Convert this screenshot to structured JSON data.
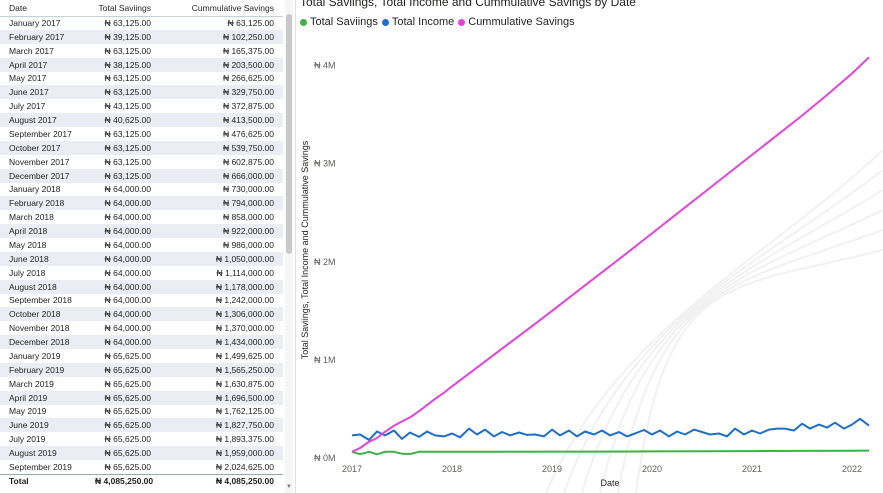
{
  "table": {
    "columns": [
      "Date",
      "Total Saviings",
      "Cummulative Savings"
    ],
    "rows": [
      [
        "January 2017",
        "₦ 63,125.00",
        "₦ 63,125.00"
      ],
      [
        "February 2017",
        "₦ 39,125.00",
        "₦ 102,250.00"
      ],
      [
        "March 2017",
        "₦ 63,125.00",
        "₦ 165,375.00"
      ],
      [
        "April 2017",
        "₦ 38,125.00",
        "₦ 203,500.00"
      ],
      [
        "May 2017",
        "₦ 63,125.00",
        "₦ 266,625.00"
      ],
      [
        "June 2017",
        "₦ 63,125.00",
        "₦ 329,750.00"
      ],
      [
        "July 2017",
        "₦ 43,125.00",
        "₦ 372,875.00"
      ],
      [
        "August 2017",
        "₦ 40,625.00",
        "₦ 413,500.00"
      ],
      [
        "September 2017",
        "₦ 63,125.00",
        "₦ 476,625.00"
      ],
      [
        "October 2017",
        "₦ 63,125.00",
        "₦ 539,750.00"
      ],
      [
        "November 2017",
        "₦ 63,125.00",
        "₦ 602,875.00"
      ],
      [
        "December 2017",
        "₦ 63,125.00",
        "₦ 666,000.00"
      ],
      [
        "January 2018",
        "₦ 64,000.00",
        "₦ 730,000.00"
      ],
      [
        "February 2018",
        "₦ 64,000.00",
        "₦ 794,000.00"
      ],
      [
        "March 2018",
        "₦ 64,000.00",
        "₦ 858,000.00"
      ],
      [
        "April 2018",
        "₦ 64,000.00",
        "₦ 922,000.00"
      ],
      [
        "May 2018",
        "₦ 64,000.00",
        "₦ 986,000.00"
      ],
      [
        "June 2018",
        "₦ 64,000.00",
        "₦ 1,050,000.00"
      ],
      [
        "July 2018",
        "₦ 64,000.00",
        "₦ 1,114,000.00"
      ],
      [
        "August 2018",
        "₦ 64,000.00",
        "₦ 1,178,000.00"
      ],
      [
        "September 2018",
        "₦ 64,000.00",
        "₦ 1,242,000.00"
      ],
      [
        "October 2018",
        "₦ 64,000.00",
        "₦ 1,306,000.00"
      ],
      [
        "November 2018",
        "₦ 64,000.00",
        "₦ 1,370,000.00"
      ],
      [
        "December 2018",
        "₦ 64,000.00",
        "₦ 1,434,000.00"
      ],
      [
        "January 2019",
        "₦ 65,625.00",
        "₦ 1,499,625.00"
      ],
      [
        "February 2019",
        "₦ 65,625.00",
        "₦ 1,565,250.00"
      ],
      [
        "March 2019",
        "₦ 65,625.00",
        "₦ 1,630,875.00"
      ],
      [
        "April 2019",
        "₦ 65,625.00",
        "₦ 1,696,500.00"
      ],
      [
        "May 2019",
        "₦ 65,625.00",
        "₦ 1,762,125.00"
      ],
      [
        "June 2019",
        "₦ 65,625.00",
        "₦ 1,827,750.00"
      ],
      [
        "July 2019",
        "₦ 65,625.00",
        "₦ 1,893,375.00"
      ],
      [
        "August 2019",
        "₦ 65,625.00",
        "₦ 1,959,000.00"
      ],
      [
        "September 2019",
        "₦ 65,625.00",
        "₦ 2,024,625.00"
      ]
    ],
    "total": [
      "Total",
      "₦ 4,085,250.00",
      "₦ 4,085,250.00"
    ]
  },
  "chart_data": {
    "type": "line",
    "title": "Total Saviings, Total Income and Cummulative Savings by Date",
    "xlabel": "Date",
    "ylabel": "Total Saviings, Total Income and Cummulative Savings",
    "ylim": [
      0,
      4200000
    ],
    "xlim": [
      2017.0,
      2022.18
    ],
    "y_ticks": [
      {
        "value": 0,
        "label": "₦ 0M"
      },
      {
        "value": 1000000,
        "label": "₦ 1M"
      },
      {
        "value": 2000000,
        "label": "₦ 2M"
      },
      {
        "value": 3000000,
        "label": "₦ 3M"
      },
      {
        "value": 4000000,
        "label": "₦ 4M"
      }
    ],
    "x_ticks": [
      {
        "value": 2017,
        "label": "2017"
      },
      {
        "value": 2018,
        "label": "2018"
      },
      {
        "value": 2019,
        "label": "2019"
      },
      {
        "value": 2020,
        "label": "2020"
      },
      {
        "value": 2021,
        "label": "2021"
      },
      {
        "value": 2022,
        "label": "2022"
      }
    ],
    "legend_position": "top-left",
    "series": [
      {
        "name": "Total Saviings",
        "color": "#3fb04a",
        "points": [
          [
            2017.0,
            63125
          ],
          [
            2017.08,
            39125
          ],
          [
            2017.17,
            63125
          ],
          [
            2017.25,
            38125
          ],
          [
            2017.33,
            63125
          ],
          [
            2017.42,
            63125
          ],
          [
            2017.5,
            43125
          ],
          [
            2017.58,
            40625
          ],
          [
            2017.67,
            63125
          ],
          [
            2017.75,
            63125
          ],
          [
            2017.83,
            63125
          ],
          [
            2017.92,
            63125
          ],
          [
            2018.0,
            64000
          ],
          [
            2018.5,
            64000
          ],
          [
            2019.0,
            65625
          ],
          [
            2019.5,
            65625
          ],
          [
            2020.0,
            67000
          ],
          [
            2020.5,
            68000
          ],
          [
            2021.0,
            70000
          ],
          [
            2021.5,
            72000
          ],
          [
            2022.0,
            74000
          ],
          [
            2022.17,
            75000
          ]
        ]
      },
      {
        "name": "Total Income",
        "color": "#1f6fc5",
        "points": [
          [
            2017.0,
            230000
          ],
          [
            2017.08,
            240000
          ],
          [
            2017.17,
            185000
          ],
          [
            2017.25,
            270000
          ],
          [
            2017.33,
            230000
          ],
          [
            2017.42,
            280000
          ],
          [
            2017.5,
            195000
          ],
          [
            2017.58,
            260000
          ],
          [
            2017.67,
            215000
          ],
          [
            2017.75,
            270000
          ],
          [
            2017.83,
            230000
          ],
          [
            2017.92,
            220000
          ],
          [
            2018.0,
            250000
          ],
          [
            2018.08,
            210000
          ],
          [
            2018.17,
            300000
          ],
          [
            2018.25,
            240000
          ],
          [
            2018.33,
            290000
          ],
          [
            2018.42,
            220000
          ],
          [
            2018.5,
            265000
          ],
          [
            2018.58,
            230000
          ],
          [
            2018.67,
            260000
          ],
          [
            2018.75,
            235000
          ],
          [
            2018.83,
            240000
          ],
          [
            2018.92,
            220000
          ],
          [
            2019.0,
            290000
          ],
          [
            2019.08,
            230000
          ],
          [
            2019.17,
            280000
          ],
          [
            2019.25,
            220000
          ],
          [
            2019.33,
            270000
          ],
          [
            2019.42,
            240000
          ],
          [
            2019.5,
            280000
          ],
          [
            2019.58,
            230000
          ],
          [
            2019.67,
            265000
          ],
          [
            2019.75,
            220000
          ],
          [
            2019.83,
            250000
          ],
          [
            2019.92,
            285000
          ],
          [
            2020.0,
            240000
          ],
          [
            2020.08,
            280000
          ],
          [
            2020.17,
            220000
          ],
          [
            2020.25,
            270000
          ],
          [
            2020.33,
            240000
          ],
          [
            2020.42,
            290000
          ],
          [
            2020.5,
            265000
          ],
          [
            2020.58,
            240000
          ],
          [
            2020.67,
            250000
          ],
          [
            2020.75,
            220000
          ],
          [
            2020.83,
            300000
          ],
          [
            2020.92,
            240000
          ],
          [
            2021.0,
            280000
          ],
          [
            2021.08,
            250000
          ],
          [
            2021.17,
            290000
          ],
          [
            2021.25,
            300000
          ],
          [
            2021.33,
            300000
          ],
          [
            2021.42,
            280000
          ],
          [
            2021.5,
            350000
          ],
          [
            2021.58,
            300000
          ],
          [
            2021.67,
            340000
          ],
          [
            2021.75,
            310000
          ],
          [
            2021.83,
            360000
          ],
          [
            2021.92,
            300000
          ],
          [
            2022.0,
            340000
          ],
          [
            2022.08,
            400000
          ],
          [
            2022.17,
            330000
          ]
        ]
      },
      {
        "name": "Cummulative Savings",
        "color": "#e044d8",
        "points": [
          [
            2017.0,
            63125
          ],
          [
            2017.08,
            102250
          ],
          [
            2017.17,
            165375
          ],
          [
            2017.25,
            203500
          ],
          [
            2017.33,
            266625
          ],
          [
            2017.42,
            329750
          ],
          [
            2017.5,
            372875
          ],
          [
            2017.58,
            413500
          ],
          [
            2017.67,
            476625
          ],
          [
            2017.75,
            539750
          ],
          [
            2017.83,
            602875
          ],
          [
            2017.92,
            666000
          ],
          [
            2018.0,
            730000
          ],
          [
            2018.25,
            922000
          ],
          [
            2018.5,
            1114000
          ],
          [
            2018.75,
            1306000
          ],
          [
            2019.0,
            1499625
          ],
          [
            2019.25,
            1696500
          ],
          [
            2019.5,
            1893375
          ],
          [
            2019.75,
            2090000
          ],
          [
            2020.0,
            2290000
          ],
          [
            2020.25,
            2490000
          ],
          [
            2020.5,
            2690000
          ],
          [
            2020.75,
            2890000
          ],
          [
            2021.0,
            3090000
          ],
          [
            2021.25,
            3290000
          ],
          [
            2021.5,
            3490000
          ],
          [
            2021.75,
            3700000
          ],
          [
            2022.0,
            3920000
          ],
          [
            2022.17,
            4085250
          ]
        ]
      }
    ]
  }
}
